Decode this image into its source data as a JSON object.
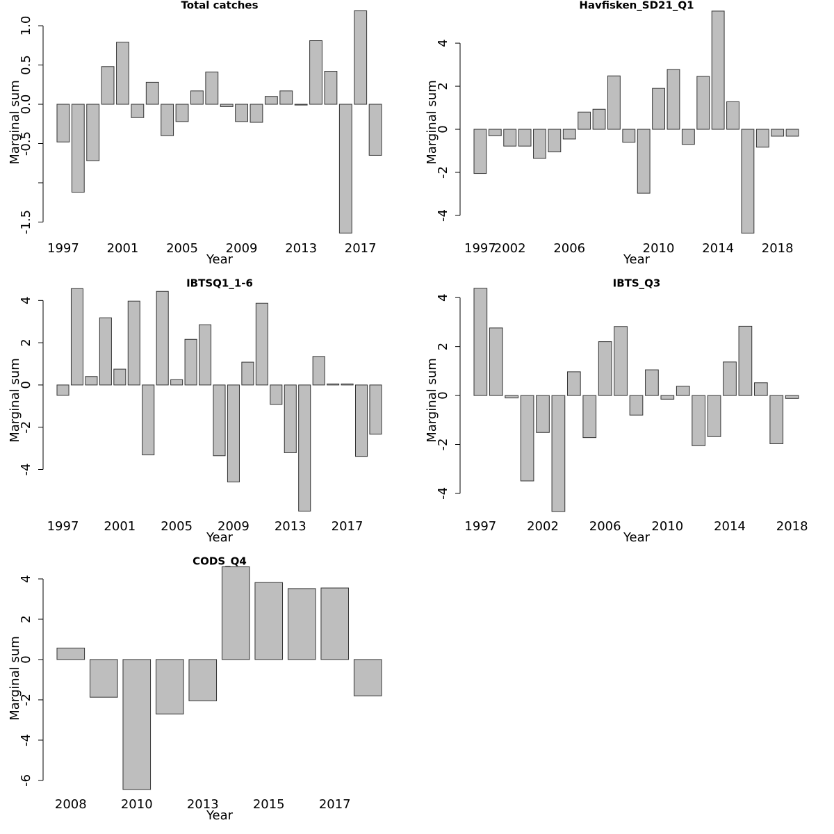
{
  "chart_data": [
    {
      "type": "bar",
      "title": "Total catches",
      "xlabel": "Year",
      "ylabel": "Marginal sum",
      "color": "#bebebe",
      "categories": [
        "1997",
        null,
        null,
        null,
        "2001",
        null,
        null,
        null,
        "2005",
        null,
        null,
        null,
        "2009",
        null,
        null,
        null,
        "2013",
        null,
        null,
        null,
        "2017",
        null
      ],
      "values": [
        -0.48,
        -1.12,
        -0.72,
        0.48,
        0.79,
        -0.17,
        0.28,
        -0.4,
        -0.22,
        0.17,
        0.41,
        -0.03,
        -0.22,
        -0.23,
        0.1,
        0.17,
        -0.01,
        0.81,
        0.42,
        -1.64,
        1.19,
        -0.65
      ],
      "ylim": [
        -1.646,
        1.195
      ],
      "yticks": [
        {
          "value": -1.5,
          "label": "-1.5"
        },
        {
          "value": -1
        },
        {
          "value": -0.5,
          "label": "-0.5"
        },
        {
          "value": 0,
          "label": "0.0"
        },
        {
          "value": 0.5,
          "label": "0.5"
        },
        {
          "value": 1,
          "label": "1.0"
        }
      ]
    },
    {
      "type": "bar",
      "title": "Havfisken_SD21_Q1",
      "xlabel": "Year",
      "ylabel": "Marginal sum",
      "color": "#bebebe",
      "categories": [
        "1997",
        null,
        "2002",
        null,
        null,
        null,
        "2006",
        null,
        null,
        null,
        null,
        null,
        "2010",
        null,
        null,
        null,
        "2014",
        null,
        null,
        null,
        "2018",
        null
      ],
      "values": [
        -2.05,
        -0.3,
        -0.78,
        -0.78,
        -1.35,
        -1.05,
        -0.45,
        0.8,
        0.93,
        2.48,
        -0.6,
        -2.97,
        1.9,
        2.78,
        -0.7,
        2.46,
        5.49,
        1.28,
        -4.82,
        -0.83,
        -0.32,
        -0.32
      ],
      "ylim": [
        -4.84,
        5.52
      ],
      "yticks": [
        -4,
        -2,
        0,
        2,
        4
      ]
    },
    {
      "type": "bar",
      "title": "IBTSQ1_1-6",
      "xlabel": "Year",
      "ylabel": "Marginal sum",
      "color": "#bebebe",
      "categories": [
        "1997",
        null,
        null,
        null,
        "2001",
        null,
        null,
        null,
        "2005",
        null,
        null,
        null,
        "2009",
        null,
        null,
        null,
        "2013",
        null,
        null,
        null,
        "2017",
        null,
        null
      ],
      "values": [
        -0.49,
        4.56,
        0.4,
        3.18,
        0.75,
        3.97,
        -3.31,
        4.43,
        0.25,
        2.16,
        2.85,
        -3.35,
        -4.59,
        1.08,
        3.87,
        -0.92,
        -3.21,
        -5.97,
        1.35,
        0.05,
        0.05,
        -3.38,
        -2.33
      ],
      "ylim": [
        -5.99,
        4.57
      ],
      "yticks": [
        -4,
        -2,
        0,
        2,
        4
      ]
    },
    {
      "type": "bar",
      "title": "IBTS_Q3",
      "xlabel": "Year",
      "ylabel": "Marginal sum",
      "color": "#bebebe",
      "categories": [
        "1997",
        null,
        null,
        null,
        "2002",
        null,
        null,
        null,
        "2006",
        null,
        null,
        null,
        "2010",
        null,
        null,
        null,
        "2014",
        null,
        null,
        null,
        "2018"
      ],
      "values": [
        4.38,
        2.76,
        -0.1,
        -3.49,
        -1.51,
        -4.74,
        0.97,
        -1.72,
        2.2,
        2.82,
        -0.8,
        1.05,
        -0.15,
        0.38,
        -2.05,
        -1.68,
        1.37,
        2.83,
        0.52,
        -1.97,
        -0.12
      ],
      "ylim": [
        -4.74,
        4.375
      ],
      "yticks": [
        -4,
        -2,
        0,
        2,
        4
      ]
    },
    {
      "type": "bar",
      "title": "CODS_Q4",
      "xlabel": "Year",
      "ylabel": "Marginal sum",
      "color": "#bebebe",
      "categories": [
        "2008",
        null,
        "2010",
        null,
        "2013",
        null,
        "2015",
        null,
        "2017",
        null
      ],
      "values": [
        0.57,
        -1.87,
        -6.45,
        -2.7,
        -2.05,
        4.6,
        3.82,
        3.52,
        3.55,
        -1.8
      ],
      "ylim": [
        -6.45,
        4.62
      ],
      "yticks": [
        -6,
        -4,
        -2,
        0,
        2,
        4
      ]
    }
  ]
}
